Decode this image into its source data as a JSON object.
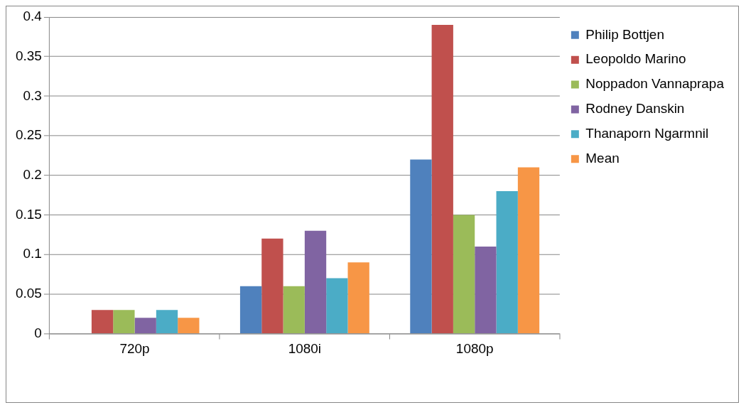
{
  "chart_data": {
    "type": "bar",
    "categories": [
      "720p",
      "1080i",
      "1080p"
    ],
    "series": [
      {
        "name": "Philip Bottjen",
        "color": "#4f81bd",
        "values": [
          0,
          0.06,
          0.22
        ]
      },
      {
        "name": "Leopoldo Marino",
        "color": "#c0504d",
        "values": [
          0.03,
          0.12,
          0.39
        ]
      },
      {
        "name": "Noppadon Vannaprapa",
        "color": "#9bbb59",
        "values": [
          0.03,
          0.06,
          0.15
        ]
      },
      {
        "name": "Rodney Danskin",
        "color": "#8064a2",
        "values": [
          0.02,
          0.13,
          0.11
        ]
      },
      {
        "name": "Thanaporn Ngarmnil",
        "color": "#4bacc6",
        "values": [
          0.03,
          0.07,
          0.18
        ]
      },
      {
        "name": "Mean",
        "color": "#f79646",
        "values": [
          0.02,
          0.09,
          0.21
        ]
      }
    ],
    "ylim": [
      0,
      0.4
    ],
    "yticks": [
      0,
      0.05,
      0.1,
      0.15,
      0.2,
      0.25,
      0.3,
      0.35,
      0.4
    ],
    "grid": "y",
    "legend": "top right"
  }
}
